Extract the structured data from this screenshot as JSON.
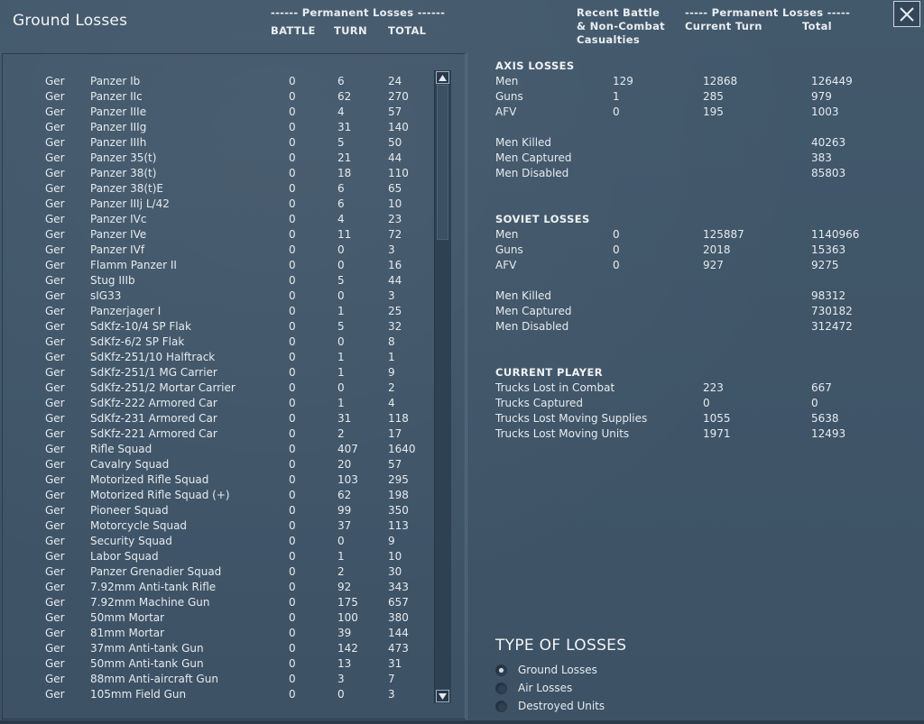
{
  "window": {
    "title": "Ground Losses"
  },
  "left_header": {
    "group": "------ Permanent Losses ------",
    "col_battle": "BATTLE",
    "col_turn": "TURN",
    "col_total": "TOTAL"
  },
  "right_header": {
    "col_recent_1": "Recent Battle",
    "col_recent_2": "& Non-Combat",
    "col_recent_3": "Casualties",
    "group": "----- Permanent Losses -----",
    "col_current": "Current Turn",
    "col_total": "Total"
  },
  "units": [
    [
      "Ger",
      "Panzer Ib",
      "0",
      "6",
      "24"
    ],
    [
      "Ger",
      "Panzer IIc",
      "0",
      "62",
      "270"
    ],
    [
      "Ger",
      "Panzer IIIe",
      "0",
      "4",
      "57"
    ],
    [
      "Ger",
      "Panzer IIIg",
      "0",
      "31",
      "140"
    ],
    [
      "Ger",
      "Panzer IIIh",
      "0",
      "5",
      "50"
    ],
    [
      "Ger",
      "Panzer 35(t)",
      "0",
      "21",
      "44"
    ],
    [
      "Ger",
      "Panzer 38(t)",
      "0",
      "18",
      "110"
    ],
    [
      "Ger",
      "Panzer 38(t)E",
      "0",
      "6",
      "65"
    ],
    [
      "Ger",
      "Panzer IIIj L/42",
      "0",
      "6",
      "10"
    ],
    [
      "Ger",
      "Panzer IVc",
      "0",
      "4",
      "23"
    ],
    [
      "Ger",
      "Panzer IVe",
      "0",
      "11",
      "72"
    ],
    [
      "Ger",
      "Panzer IVf",
      "0",
      "0",
      "3"
    ],
    [
      "Ger",
      "Flamm Panzer II",
      "0",
      "0",
      "16"
    ],
    [
      "Ger",
      "Stug IIIb",
      "0",
      "5",
      "44"
    ],
    [
      "Ger",
      "sIG33",
      "0",
      "0",
      "3"
    ],
    [
      "Ger",
      "Panzerjager I",
      "0",
      "1",
      "25"
    ],
    [
      "Ger",
      "SdKfz-10/4 SP Flak",
      "0",
      "5",
      "32"
    ],
    [
      "Ger",
      "SdKfz-6/2 SP Flak",
      "0",
      "0",
      "8"
    ],
    [
      "Ger",
      "SdKfz-251/10 Halftrack",
      "0",
      "1",
      "1"
    ],
    [
      "Ger",
      "SdKfz-251/1 MG Carrier",
      "0",
      "1",
      "9"
    ],
    [
      "Ger",
      "SdKfz-251/2 Mortar Carrier",
      "0",
      "0",
      "2"
    ],
    [
      "Ger",
      "SdKfz-222 Armored Car",
      "0",
      "1",
      "4"
    ],
    [
      "Ger",
      "SdKfz-231 Armored Car",
      "0",
      "31",
      "118"
    ],
    [
      "Ger",
      "SdKfz-221 Armored Car",
      "0",
      "2",
      "17"
    ],
    [
      "Ger",
      "Rifle Squad",
      "0",
      "407",
      "1640"
    ],
    [
      "Ger",
      "Cavalry Squad",
      "0",
      "20",
      "57"
    ],
    [
      "Ger",
      "Motorized Rifle Squad",
      "0",
      "103",
      "295"
    ],
    [
      "Ger",
      "Motorized Rifle Squad (+)",
      "0",
      "62",
      "198"
    ],
    [
      "Ger",
      "Pioneer Squad",
      "0",
      "99",
      "350"
    ],
    [
      "Ger",
      "Motorcycle Squad",
      "0",
      "37",
      "113"
    ],
    [
      "Ger",
      "Security Squad",
      "0",
      "0",
      "9"
    ],
    [
      "Ger",
      "Labor Squad",
      "0",
      "1",
      "10"
    ],
    [
      "Ger",
      "Panzer Grenadier Squad",
      "0",
      "2",
      "30"
    ],
    [
      "Ger",
      "7.92mm Anti-tank Rifle",
      "0",
      "92",
      "343"
    ],
    [
      "Ger",
      "7.92mm Machine Gun",
      "0",
      "175",
      "657"
    ],
    [
      "Ger",
      "50mm Mortar",
      "0",
      "100",
      "380"
    ],
    [
      "Ger",
      "81mm Mortar",
      "0",
      "39",
      "144"
    ],
    [
      "Ger",
      "37mm Anti-tank Gun",
      "0",
      "142",
      "473"
    ],
    [
      "Ger",
      "50mm Anti-tank Gun",
      "0",
      "13",
      "31"
    ],
    [
      "Ger",
      "88mm Anti-aircraft Gun",
      "0",
      "3",
      "7"
    ],
    [
      "Ger",
      "105mm Field Gun",
      "0",
      "0",
      "3"
    ]
  ],
  "axis": {
    "title": "AXIS LOSSES",
    "rows": [
      [
        "Men",
        "129",
        "12868",
        "126449"
      ],
      [
        "Guns",
        "1",
        "285",
        "979"
      ],
      [
        "AFV",
        "0",
        "195",
        "1003"
      ]
    ],
    "detail": [
      [
        "Men Killed",
        "40263"
      ],
      [
        "Men Captured",
        "383"
      ],
      [
        "Men Disabled",
        "85803"
      ]
    ]
  },
  "soviet": {
    "title": "SOVIET LOSSES",
    "rows": [
      [
        "Men",
        "0",
        "125887",
        "1140966"
      ],
      [
        "Guns",
        "0",
        "2018",
        "15363"
      ],
      [
        "AFV",
        "0",
        "927",
        "9275"
      ]
    ],
    "detail": [
      [
        "Men Killed",
        "98312"
      ],
      [
        "Men Captured",
        "730182"
      ],
      [
        "Men Disabled",
        "312472"
      ]
    ]
  },
  "player": {
    "title": "CURRENT PLAYER",
    "rows": [
      [
        "Trucks Lost in Combat",
        "223",
        "667"
      ],
      [
        "Trucks Captured",
        "0",
        "0"
      ],
      [
        "Trucks Lost Moving Supplies",
        "1055",
        "5638"
      ],
      [
        "Trucks Lost Moving Units",
        "1971",
        "12493"
      ]
    ]
  },
  "type_of_losses": {
    "title": "TYPE OF LOSSES",
    "options": [
      "Ground Losses",
      "Air Losses",
      "Destroyed Units"
    ],
    "selected": "Ground Losses"
  },
  "icons": {
    "close": "close-icon",
    "scroll_up": "arrow-up-icon",
    "scroll_down": "arrow-down-icon"
  }
}
